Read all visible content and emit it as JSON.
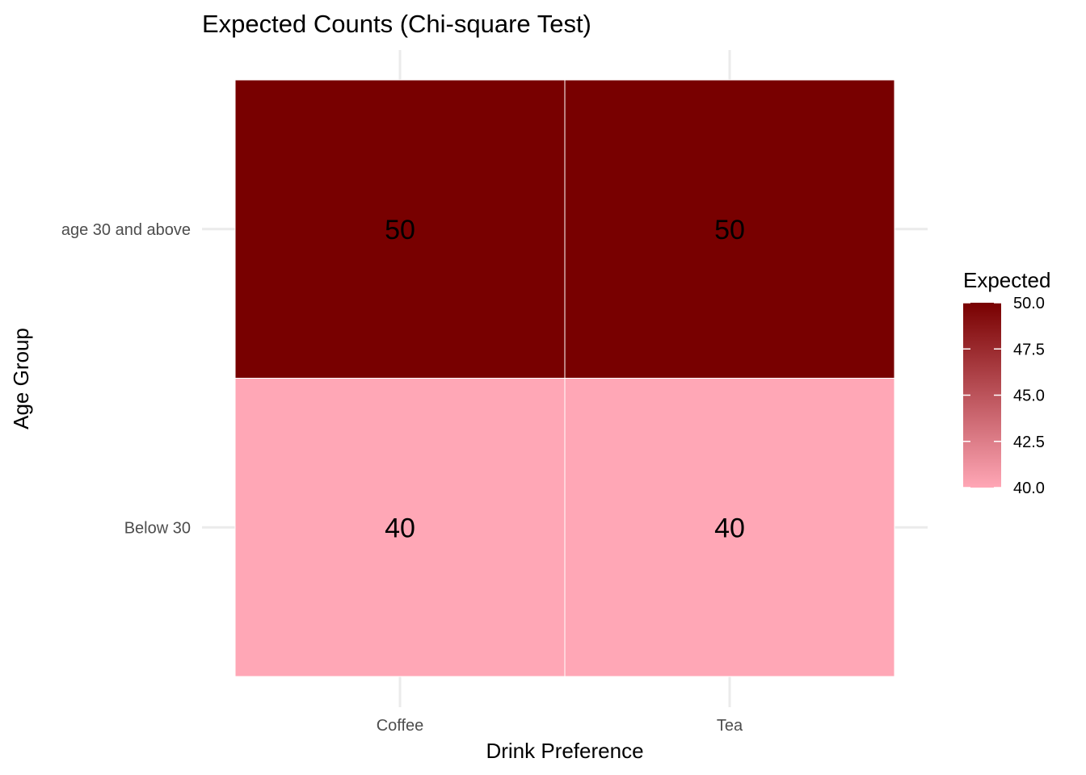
{
  "chart_data": {
    "type": "heatmap",
    "title": "Expected Counts (Chi-square Test)",
    "xlabel": "Drink Preference",
    "ylabel": "Age Group",
    "x_categories": [
      "Coffee",
      "Tea"
    ],
    "y_categories": [
      "Below 30",
      "age 30 and above"
    ],
    "cells": [
      {
        "x": "Coffee",
        "y": "age 30 and above",
        "value": 50,
        "label": "50"
      },
      {
        "x": "Tea",
        "y": "age 30 and above",
        "value": 50,
        "label": "50"
      },
      {
        "x": "Coffee",
        "y": "Below 30",
        "value": 40,
        "label": "40"
      },
      {
        "x": "Tea",
        "y": "Below 30",
        "value": 40,
        "label": "40"
      }
    ],
    "legend": {
      "title": "Expected",
      "min": 40,
      "max": 50,
      "ticks": [
        "50.0",
        "47.5",
        "45.0",
        "42.5",
        "40.0"
      ],
      "tick_values": [
        50,
        47.5,
        45,
        42.5,
        40
      ],
      "low_color": "#ffa7b6",
      "high_color": "#780000",
      "placement": "right"
    },
    "grid": true
  }
}
